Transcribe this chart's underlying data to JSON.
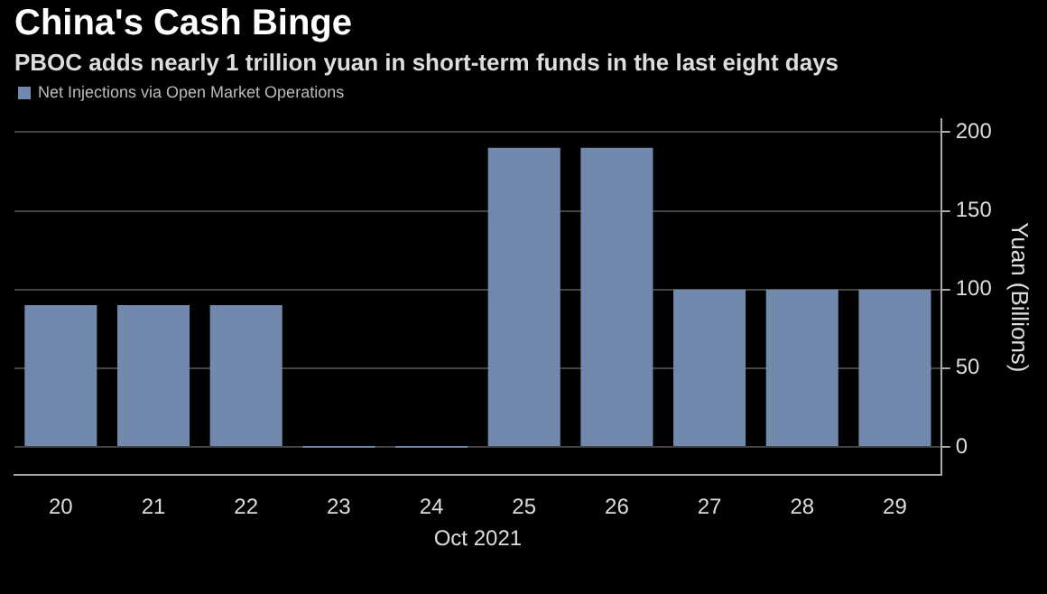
{
  "chart_data": {
    "type": "bar",
    "title": "China's Cash Binge",
    "subtitle": "PBOC adds nearly 1 trillion yuan in short-term funds in the last eight days",
    "categories": [
      "20",
      "21",
      "22",
      "23",
      "24",
      "25",
      "26",
      "27",
      "28",
      "29"
    ],
    "series": [
      {
        "name": "Net Injections via Open Market Operations",
        "color": "#7189ad",
        "values": [
          90,
          90,
          90,
          0,
          0,
          190,
          190,
          100,
          100,
          100
        ]
      }
    ],
    "xlabel": "Oct 2021",
    "ylabel": "Yuan (Billions)",
    "ylim": [
      -18,
      208
    ],
    "yticks": [
      0,
      50,
      100,
      150,
      200
    ],
    "grid": "y",
    "legend": "top left"
  }
}
